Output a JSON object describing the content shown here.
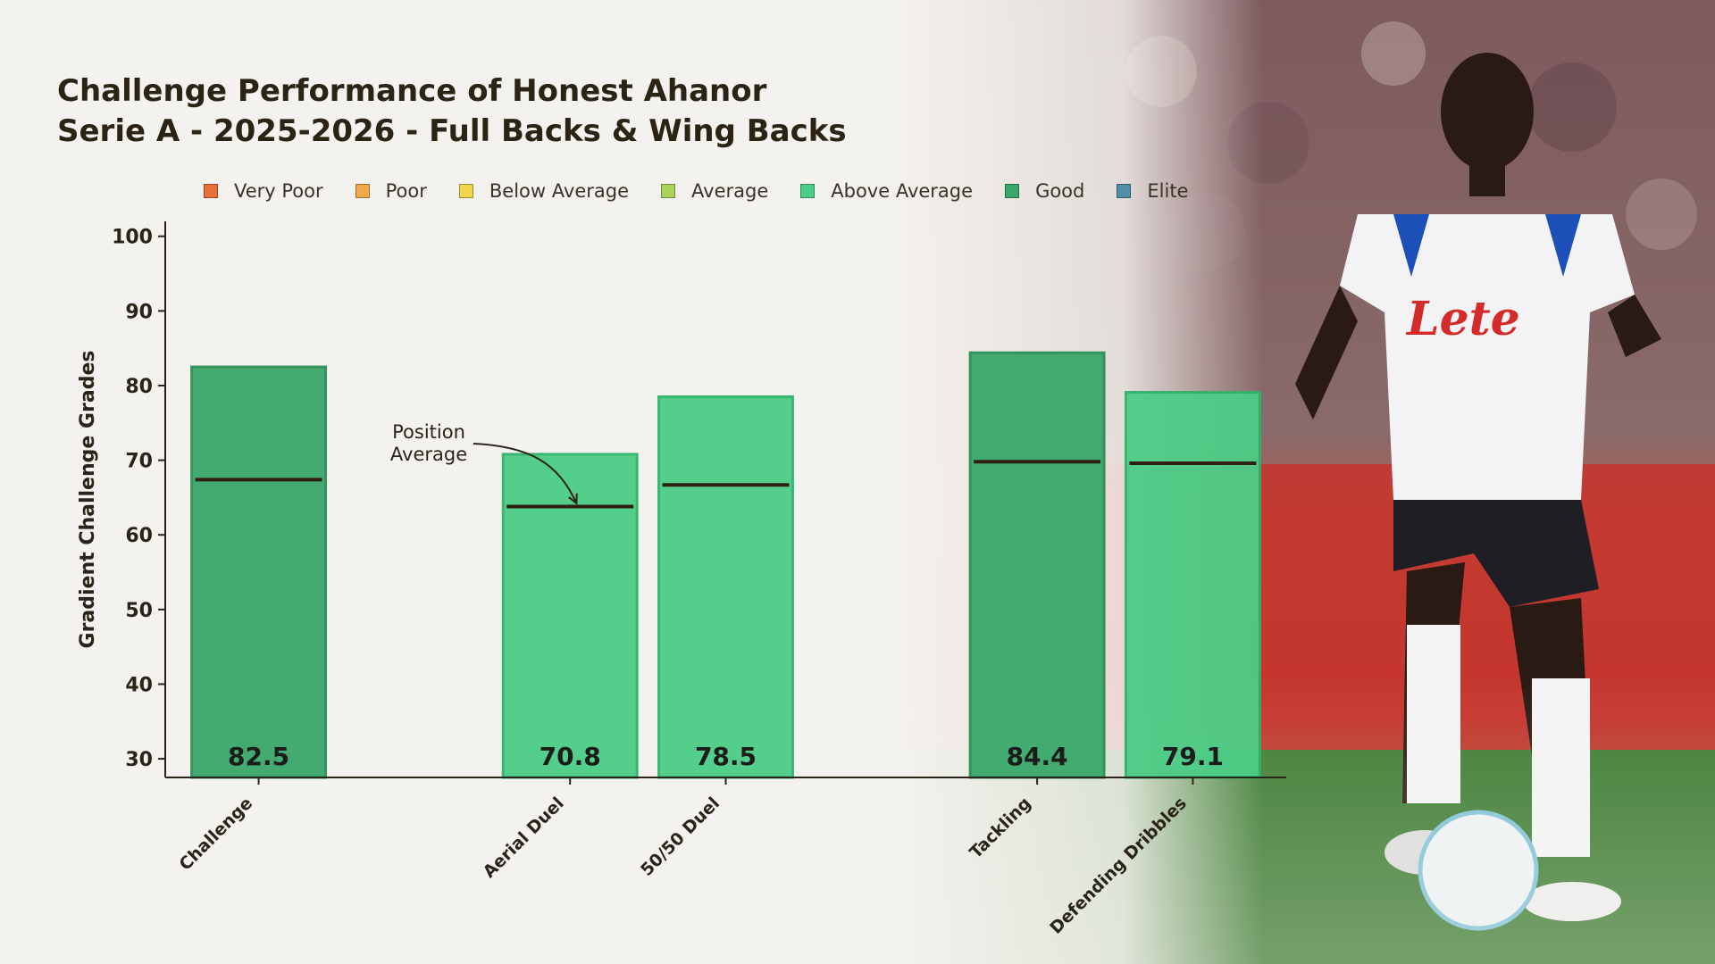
{
  "title": {
    "line1": "Challenge Performance of Honest Ahanor",
    "line2": "Serie A - 2025-2026 - Full Backs & Wing Backs"
  },
  "legend": [
    {
      "label": "Very Poor",
      "color": "#e8703a"
    },
    {
      "label": "Poor",
      "color": "#f0a94a"
    },
    {
      "label": "Below Average",
      "color": "#f1d54a"
    },
    {
      "label": "Average",
      "color": "#a9d35a"
    },
    {
      "label": "Above Average",
      "color": "#4ccd86"
    },
    {
      "label": "Good",
      "color": "#3aa86a"
    },
    {
      "label": "Elite",
      "color": "#4f8faa"
    }
  ],
  "annotation": {
    "line1": "Position",
    "line2": "Average"
  },
  "chart_data": {
    "type": "bar",
    "ylabel": "Gradient Challenge Grades",
    "xlabel": "",
    "ylim": [
      27.5,
      102
    ],
    "yticks": [
      30,
      40,
      50,
      60,
      70,
      80,
      90,
      100
    ],
    "categories": [
      "Challenge",
      "",
      "Aerial Duel",
      "50/50 Duel",
      "",
      "Tackling",
      "Defending Dribbles"
    ],
    "values": [
      82.5,
      null,
      70.8,
      78.5,
      null,
      84.4,
      79.1
    ],
    "value_labels": [
      "82.5",
      "",
      "70.8",
      "78.5",
      "",
      "84.4",
      "79.1"
    ],
    "tiers": [
      "Good",
      "",
      "Above Average",
      "Above Average",
      "",
      "Good",
      "Above Average"
    ],
    "position_average": [
      67.4,
      null,
      63.8,
      66.7,
      null,
      69.8,
      69.6
    ],
    "colors": {
      "Good": "#3aa86a",
      "Above Average": "#4ccd86",
      "Good_edge": "#2a8f55",
      "Above Average_edge": "#2fb36a"
    },
    "grid": false
  }
}
